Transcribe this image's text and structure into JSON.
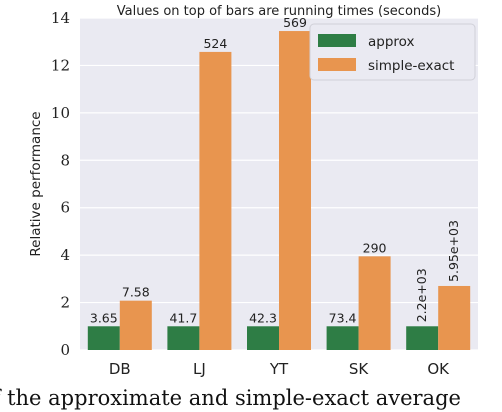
{
  "chart_data": {
    "type": "bar",
    "title": "Values on top of bars are running times (seconds)",
    "xlabel": "",
    "ylabel": "Relative performance",
    "ylim": [
      0,
      14
    ],
    "yticks": [
      0,
      2,
      4,
      6,
      8,
      10,
      12,
      14
    ],
    "categories": [
      "DB",
      "LJ",
      "YT",
      "SK",
      "OK"
    ],
    "series": [
      {
        "name": "approx",
        "color": "#2e7d45",
        "values": [
          1,
          1,
          1,
          1,
          1
        ],
        "labels": [
          "3.65",
          "41.7",
          "42.3",
          "73.4",
          "2.2e+03"
        ]
      },
      {
        "name": "simple-exact",
        "color": "#e8954f",
        "values": [
          2.08,
          12.57,
          13.45,
          3.95,
          2.7
        ],
        "labels": [
          "7.58",
          "524",
          "569",
          "290",
          "5.95e+03"
        ]
      }
    ],
    "legend": "top-right",
    "grid": true,
    "background": "#eaeaf2"
  },
  "caption": "of the approximate and simple-exact average"
}
